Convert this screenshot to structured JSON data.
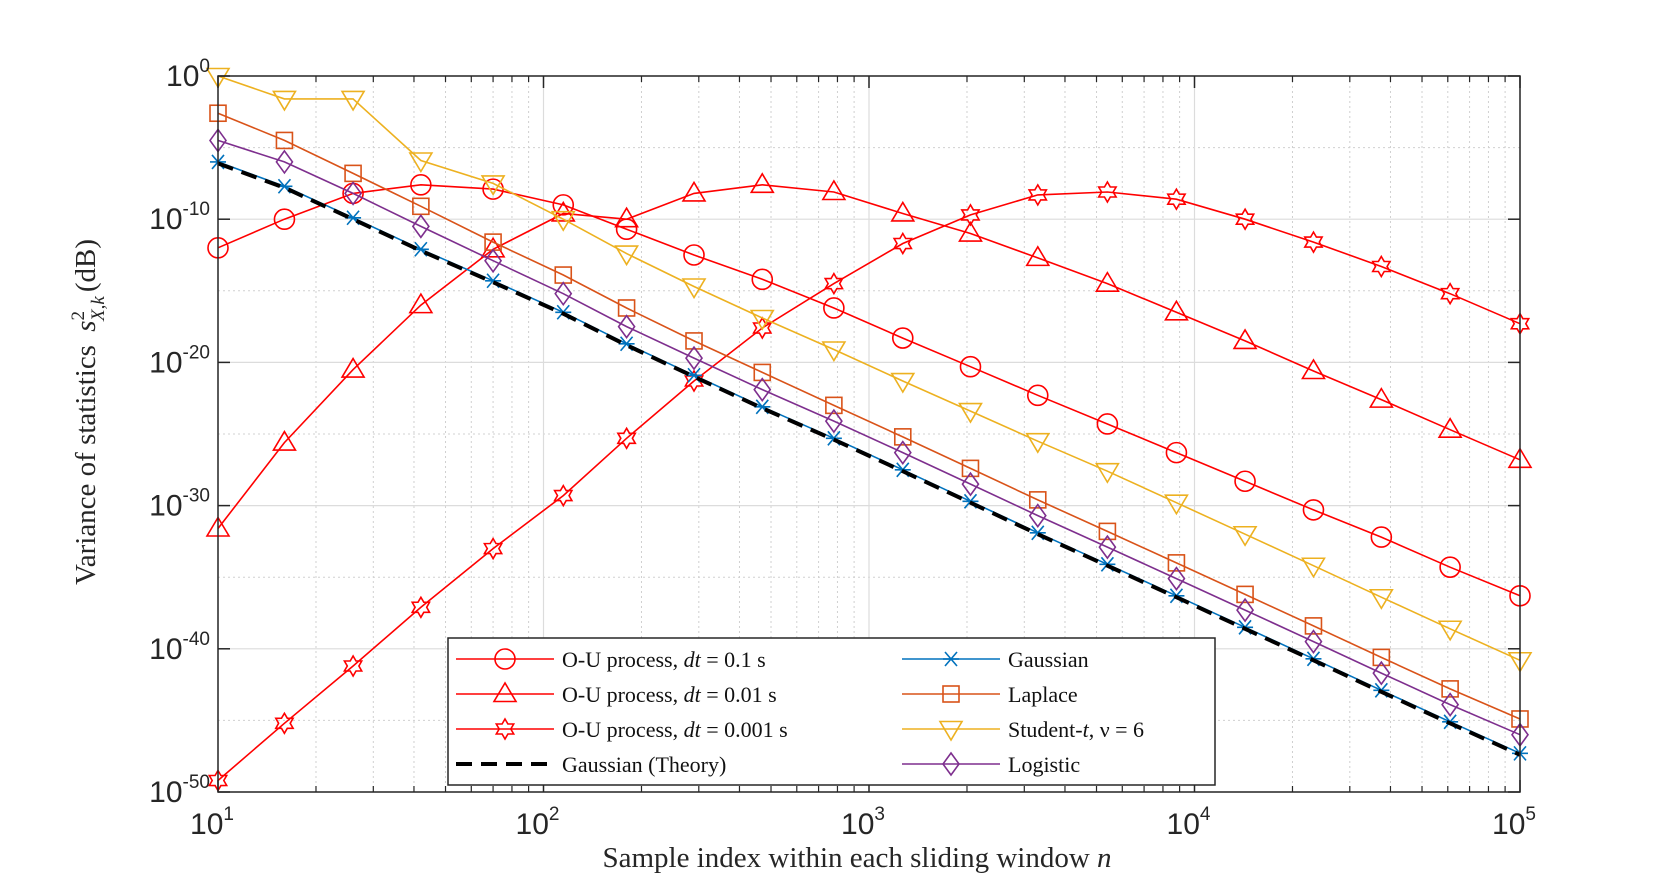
{
  "chart_data": {
    "type": "line",
    "xscale": "log",
    "yscale": "log",
    "xlabel_text": "Sample index within each sliding window",
    "xlabel_var": "n",
    "ylabel_text": "Variance of statistics",
    "ylabel_symbol": "s",
    "ylabel_sup": "2",
    "ylabel_sub": "X,k",
    "ylabel_unit": "(dB)",
    "xlim": [
      10,
      100000
    ],
    "ylim_exp": [
      -50,
      0
    ],
    "xticks": [
      {
        "value": 10,
        "base": "10",
        "exp": "1"
      },
      {
        "value": 100,
        "base": "10",
        "exp": "2"
      },
      {
        "value": 1000,
        "base": "10",
        "exp": "3"
      },
      {
        "value": 10000,
        "base": "10",
        "exp": "4"
      },
      {
        "value": 100000,
        "base": "10",
        "exp": "5"
      }
    ],
    "yticks": [
      {
        "value_exp": 0,
        "base": "10",
        "exp": "0"
      },
      {
        "value_exp": -10,
        "base": "10",
        "exp": "-10"
      },
      {
        "value_exp": -20,
        "base": "10",
        "exp": "-20"
      },
      {
        "value_exp": -30,
        "base": "10",
        "exp": "-30"
      },
      {
        "value_exp": -40,
        "base": "10",
        "exp": "-40"
      },
      {
        "value_exp": -50,
        "base": "10",
        "exp": "-50"
      }
    ],
    "grid": true,
    "legend_position": "bottom-center",
    "x": [
      10,
      16,
      26,
      42,
      70,
      115,
      180,
      290,
      470,
      780,
      1270,
      2050,
      3300,
      5400,
      8800,
      14300,
      23200,
      37500,
      61000,
      100000
    ],
    "series": [
      {
        "name": "O-U process, ",
        "name_var": "dt",
        "name_suffix": " = 0.1 s",
        "color": "#ff0000",
        "marker": "circle",
        "log10_values": [
          -12.0,
          -10.0,
          -8.2,
          -7.6,
          -7.9,
          -9.0,
          -10.7,
          -12.5,
          -14.2,
          -16.2,
          -18.3,
          -20.3,
          -22.3,
          -24.3,
          -26.3,
          -28.3,
          -30.3,
          -32.2,
          -34.3,
          -36.3
        ]
      },
      {
        "name": "O-U process, ",
        "name_var": "dt",
        "name_suffix": " = 0.01 s",
        "color": "#ff0000",
        "marker": "triangle",
        "log10_values": [
          -31.6,
          -25.6,
          -20.5,
          -16.0,
          -12.1,
          -9.6,
          -10.0,
          -8.2,
          -7.6,
          -8.1,
          -9.6,
          -11.0,
          -12.7,
          -14.5,
          -16.5,
          -18.5,
          -20.6,
          -22.6,
          -24.7,
          -26.8
        ]
      },
      {
        "name": "O-U process, ",
        "name_var": "dt",
        "name_suffix": " = 0.001 s",
        "color": "#ff0000",
        "marker": "hexagram",
        "log10_values": [
          -49.2,
          -45.2,
          -41.2,
          -37.1,
          -33.0,
          -29.3,
          -25.3,
          -21.3,
          -17.6,
          -14.5,
          -11.7,
          -9.7,
          -8.3,
          -8.1,
          -8.6,
          -10.0,
          -11.6,
          -13.3,
          -15.2,
          -17.3
        ]
      },
      {
        "name": "Gaussian (Theory)",
        "name_var": "",
        "name_suffix": "",
        "color": "#000000",
        "marker": "none",
        "linestyle": "dashed",
        "log10_values": [
          -6.1,
          -7.8,
          -10.0,
          -12.2,
          -14.4,
          -16.6,
          -18.8,
          -21.0,
          -23.2,
          -25.4,
          -27.6,
          -29.8,
          -32.0,
          -34.2,
          -36.4,
          -38.6,
          -40.8,
          -43.0,
          -45.2,
          -47.4
        ]
      },
      {
        "name": "Gaussian",
        "name_var": "",
        "name_suffix": "",
        "color": "#0072bd",
        "marker": "asterisk",
        "log10_values": [
          -6.0,
          -7.7,
          -9.9,
          -12.1,
          -14.3,
          -16.5,
          -18.7,
          -20.9,
          -23.1,
          -25.3,
          -27.5,
          -29.7,
          -31.9,
          -34.1,
          -36.3,
          -38.5,
          -40.7,
          -42.9,
          -45.1,
          -47.3
        ]
      },
      {
        "name": "Laplace",
        "name_var": "",
        "name_suffix": "",
        "color": "#d95319",
        "marker": "square",
        "log10_values": [
          -2.6,
          -4.5,
          -6.8,
          -9.1,
          -11.6,
          -13.9,
          -16.2,
          -18.5,
          -20.7,
          -23.0,
          -25.2,
          -27.4,
          -29.6,
          -31.8,
          -34.0,
          -36.2,
          -38.4,
          -40.6,
          -42.8,
          -44.9
        ]
      },
      {
        "name": "Student-",
        "name_var": "t",
        "name_suffix": ", ν = 6",
        "color": "#edb120",
        "marker": "triangle-down",
        "log10_values": [
          0.0,
          -1.6,
          -1.6,
          -5.9,
          -7.5,
          -10.0,
          -12.4,
          -14.7,
          -16.9,
          -19.1,
          -21.3,
          -23.4,
          -25.5,
          -27.6,
          -29.8,
          -32.0,
          -34.2,
          -36.4,
          -38.6,
          -40.8
        ]
      },
      {
        "name": "Logistic",
        "name_var": "",
        "name_suffix": "",
        "color": "#7e2f8e",
        "marker": "diamond",
        "log10_values": [
          -4.5,
          -6.0,
          -8.2,
          -10.5,
          -12.9,
          -15.2,
          -17.5,
          -19.7,
          -21.9,
          -24.1,
          -26.3,
          -28.5,
          -30.7,
          -32.9,
          -35.1,
          -37.3,
          -39.5,
          -41.7,
          -43.9,
          -46.0
        ]
      }
    ]
  }
}
